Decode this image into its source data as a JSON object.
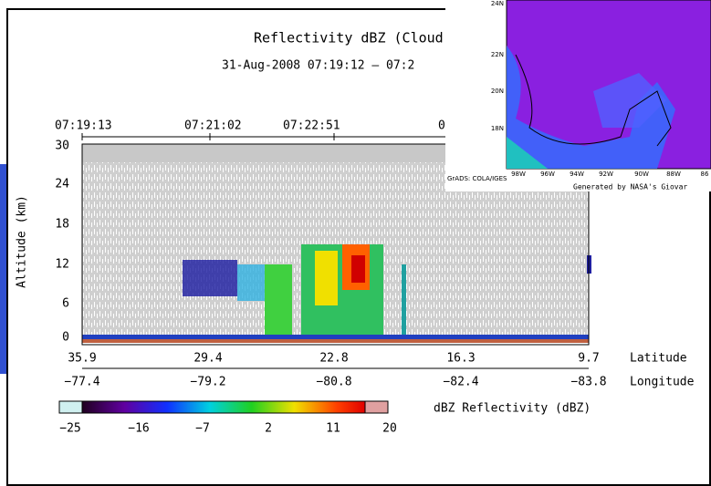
{
  "main_window": {
    "title": "Reflectivity dBZ (Cloud",
    "subtitle": "31-Aug-2008  07:19:12 – 07:2",
    "time_labels": [
      "07:19:13",
      "07:21:02",
      "07:22:51",
      "0"
    ],
    "y_axis_label": "Altitude (km)",
    "y_ticks": [
      "30",
      "24",
      "18",
      "12",
      "6",
      "0"
    ],
    "latitude_labels": [
      "35.9",
      "29.4",
      "22.8",
      "16.3",
      "9.7"
    ],
    "latitude_title": "Latitude",
    "longitude_labels": [
      "−77.4",
      "−79.2",
      "−80.8",
      "−82.4",
      "−83.8"
    ],
    "longitude_title": "Longitude",
    "colorbar_labels": [
      "−25",
      "−16",
      "−7",
      "2",
      "11",
      "20"
    ],
    "colorbar_title": "dBZ Reflectivity (dBZ)"
  },
  "map_window": {
    "lat_labels": [
      "24N",
      "22N",
      "20N",
      "18N"
    ],
    "lon_labels": [
      "98W",
      "96W",
      "94W",
      "92W",
      "90W",
      "88W",
      "86"
    ],
    "credit": "GrADS: COLA/IGES",
    "footer": "Generated by NASA's Giovar"
  }
}
